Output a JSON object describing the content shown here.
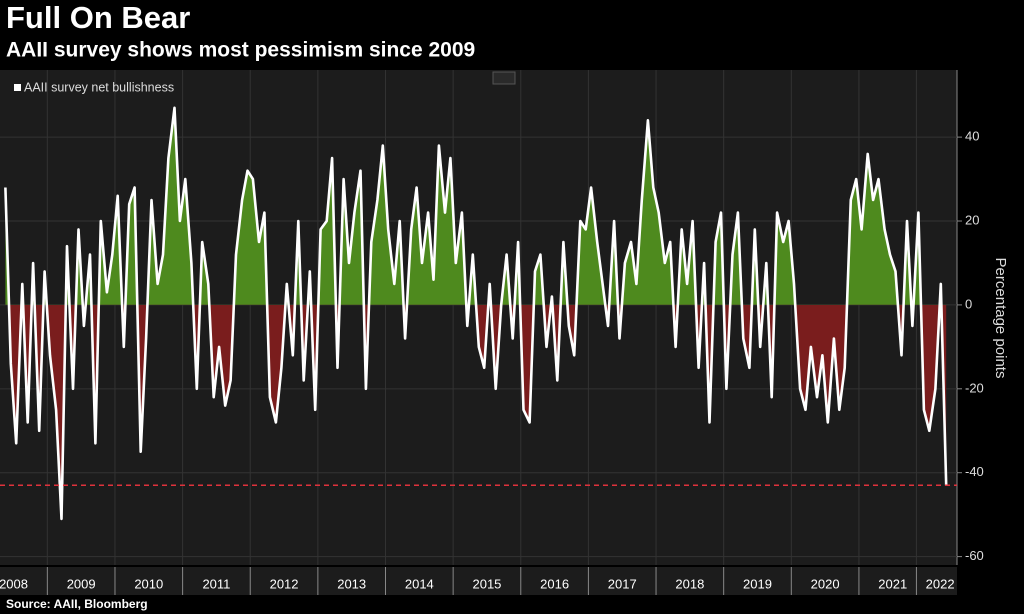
{
  "chart_data": {
    "type": "line",
    "title": "Full On Bear",
    "subtitle": "AAII survey shows most pessimism since 2009",
    "source": "Source: AAII, Bloomberg",
    "y_label": "Percentage points",
    "legend_position": "upper left",
    "series": [
      {
        "name": "AAII survey net bullishness",
        "color": "#ffffff",
        "above_color": "#4e8a1e",
        "below_color": "#7a1d1d",
        "values": [
          28,
          -14,
          -33,
          5,
          -28,
          10,
          -30,
          8,
          -12,
          -25,
          -51,
          14,
          -20,
          18,
          -5,
          12,
          -33,
          20,
          3,
          12,
          26,
          -10,
          24,
          28,
          -35,
          -8,
          25,
          5,
          12,
          35,
          47,
          20,
          30,
          10,
          -20,
          15,
          5,
          -22,
          -10,
          -24,
          -18,
          12,
          25,
          32,
          30,
          15,
          22,
          -22,
          -28,
          -15,
          5,
          -12,
          20,
          -18,
          8,
          -25,
          18,
          20,
          35,
          -15,
          30,
          10,
          22,
          32,
          -20,
          15,
          25,
          38,
          18,
          5,
          20,
          -8,
          18,
          28,
          10,
          22,
          6,
          38,
          22,
          35,
          10,
          22,
          -5,
          12,
          -10,
          -15,
          5,
          -20,
          0,
          12,
          -8,
          15,
          -25,
          -28,
          8,
          12,
          -10,
          2,
          -18,
          15,
          -5,
          -12,
          20,
          18,
          28,
          15,
          5,
          -5,
          20,
          -8,
          10,
          15,
          5,
          25,
          44,
          28,
          22,
          10,
          15,
          -10,
          18,
          5,
          20,
          -15,
          10,
          -28,
          15,
          22,
          -20,
          12,
          22,
          -8,
          -15,
          18,
          -10,
          10,
          -22,
          22,
          15,
          20,
          5,
          -20,
          -25,
          -10,
          -22,
          -12,
          -28,
          -8,
          -25,
          -15,
          25,
          30,
          18,
          36,
          25,
          30,
          18,
          12,
          8,
          -12,
          20,
          -5,
          22,
          -25,
          -30,
          -20,
          5,
          -43
        ]
      }
    ],
    "x": [
      2008.38,
      2008.46,
      2008.54,
      2008.63,
      2008.71,
      2008.79,
      2008.88,
      2008.96,
      2009.04,
      2009.13,
      2009.21,
      2009.29,
      2009.38,
      2009.46,
      2009.54,
      2009.63,
      2009.71,
      2009.79,
      2009.88,
      2009.96,
      2010.04,
      2010.13,
      2010.21,
      2010.29,
      2010.38,
      2010.46,
      2010.54,
      2010.63,
      2010.71,
      2010.79,
      2010.88,
      2010.96,
      2011.04,
      2011.13,
      2011.21,
      2011.29,
      2011.38,
      2011.46,
      2011.54,
      2011.63,
      2011.71,
      2011.79,
      2011.88,
      2011.96,
      2012.04,
      2012.13,
      2012.21,
      2012.29,
      2012.38,
      2012.46,
      2012.54,
      2012.63,
      2012.71,
      2012.79,
      2012.88,
      2012.96,
      2013.04,
      2013.13,
      2013.21,
      2013.29,
      2013.38,
      2013.46,
      2013.54,
      2013.63,
      2013.71,
      2013.79,
      2013.88,
      2013.96,
      2014.04,
      2014.13,
      2014.21,
      2014.29,
      2014.38,
      2014.46,
      2014.54,
      2014.63,
      2014.71,
      2014.79,
      2014.88,
      2014.96,
      2015.04,
      2015.13,
      2015.21,
      2015.29,
      2015.38,
      2015.46,
      2015.54,
      2015.63,
      2015.71,
      2015.79,
      2015.88,
      2015.96,
      2016.04,
      2016.13,
      2016.21,
      2016.29,
      2016.38,
      2016.46,
      2016.54,
      2016.63,
      2016.71,
      2016.79,
      2016.88,
      2016.96,
      2017.04,
      2017.13,
      2017.21,
      2017.29,
      2017.38,
      2017.46,
      2017.54,
      2017.63,
      2017.71,
      2017.79,
      2017.88,
      2017.96,
      2018.04,
      2018.13,
      2018.21,
      2018.29,
      2018.38,
      2018.46,
      2018.54,
      2018.63,
      2018.71,
      2018.79,
      2018.88,
      2018.96,
      2019.04,
      2019.13,
      2019.21,
      2019.29,
      2019.38,
      2019.46,
      2019.54,
      2019.63,
      2019.71,
      2019.79,
      2019.88,
      2019.96,
      2020.04,
      2020.13,
      2020.21,
      2020.29,
      2020.38,
      2020.46,
      2020.54,
      2020.63,
      2020.71,
      2020.79,
      2020.88,
      2020.96,
      2021.04,
      2021.13,
      2021.21,
      2021.29,
      2021.38,
      2021.46,
      2021.54,
      2021.63,
      2021.71,
      2021.79,
      2021.88,
      2021.96,
      2022.04,
      2022.13,
      2022.21,
      2022.29
    ],
    "xlim": [
      2008.3,
      2022.45
    ],
    "xticks": [
      {
        "value": 2008.5,
        "label": "2008"
      },
      {
        "value": 2009.5,
        "label": "2009"
      },
      {
        "value": 2010.5,
        "label": "2010"
      },
      {
        "value": 2011.5,
        "label": "2011"
      },
      {
        "value": 2012.5,
        "label": "2012"
      },
      {
        "value": 2013.5,
        "label": "2013"
      },
      {
        "value": 2014.5,
        "label": "2014"
      },
      {
        "value": 2015.5,
        "label": "2015"
      },
      {
        "value": 2016.5,
        "label": "2016"
      },
      {
        "value": 2017.5,
        "label": "2017"
      },
      {
        "value": 2018.5,
        "label": "2018"
      },
      {
        "value": 2019.5,
        "label": "2019"
      },
      {
        "value": 2020.5,
        "label": "2020"
      },
      {
        "value": 2021.5,
        "label": "2021"
      },
      {
        "value": 2022.2,
        "label": "2022"
      }
    ],
    "ylim": [
      -62,
      56
    ],
    "yticks": [
      -60,
      -40,
      -20,
      0,
      20,
      40
    ],
    "reference_line": {
      "value": -43,
      "color": "#e0323c"
    },
    "grid": true
  }
}
